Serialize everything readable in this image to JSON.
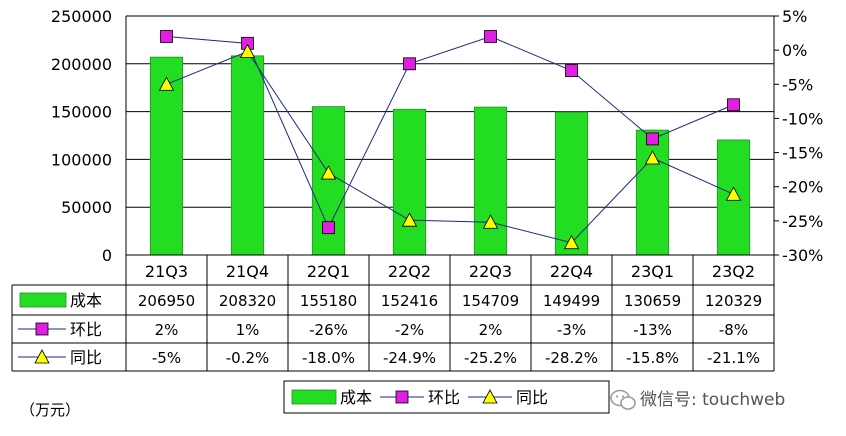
{
  "chart_data": {
    "type": "bar+line",
    "categories": [
      "21Q3",
      "21Q4",
      "22Q1",
      "22Q2",
      "22Q3",
      "22Q4",
      "23Q1",
      "23Q2"
    ],
    "left_axis": {
      "ylim": [
        0,
        250000
      ],
      "ticks": [
        "0",
        "50000",
        "100000",
        "150000",
        "200000",
        "250000"
      ]
    },
    "right_axis": {
      "ylim": [
        -30,
        5
      ],
      "ticks": [
        "-30%",
        "-25%",
        "-20%",
        "-15%",
        "-10%",
        "-5%",
        "0%",
        "5%"
      ]
    },
    "series": [
      {
        "name": "成本",
        "kind": "bar",
        "axis": "left",
        "color": "#22dd22",
        "values": [
          206950,
          208320,
          155180,
          152416,
          154709,
          149499,
          130659,
          120329
        ],
        "table_values": [
          "206950",
          "208320",
          "155180",
          "152416",
          "154709",
          "149499",
          "130659",
          "120329"
        ]
      },
      {
        "name": "环比",
        "kind": "line",
        "axis": "right",
        "marker": "square",
        "color": "#e020e0",
        "values": [
          2,
          1,
          -26,
          -2,
          2,
          -3,
          -13,
          -8
        ],
        "table_values": [
          "2%",
          "1%",
          "-26%",
          "-2%",
          "2%",
          "-3%",
          "-13%",
          "-8%"
        ]
      },
      {
        "name": "同比",
        "kind": "line",
        "axis": "right",
        "marker": "triangle",
        "color": "#ffff00",
        "values": [
          -5,
          -0.2,
          -18.0,
          -24.9,
          -25.2,
          -28.2,
          -15.8,
          -21.1
        ],
        "table_values": [
          "-5%",
          "-0.2%",
          "-18.0%",
          "-24.9%",
          "-25.2%",
          "-28.2%",
          "-15.8%",
          "-21.1%"
        ]
      }
    ],
    "unit_label": "（万元）",
    "watermark": "微信号: touchweb",
    "grid": true,
    "legend_position": "bottom"
  }
}
